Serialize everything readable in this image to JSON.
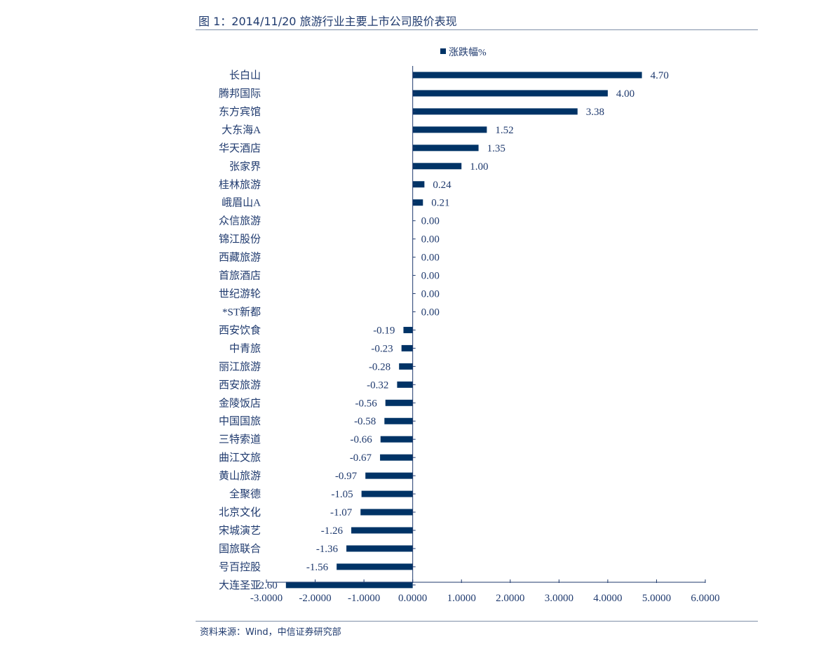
{
  "title": "图 1：2014/11/20 旅游行业主要上市公司股价表现",
  "source": "资料来源：Wind，中信证券研究部",
  "chart_data": {
    "type": "bar",
    "orientation": "horizontal",
    "title": "图 1：2014/11/20 旅游行业主要上市公司股价表现",
    "legend": {
      "position": "top-center"
    },
    "series": [
      {
        "name": "涨跌幅%",
        "color": "#003366",
        "values": [
          4.7,
          4.0,
          3.38,
          1.52,
          1.35,
          1.0,
          0.24,
          0.21,
          0.0,
          0.0,
          0.0,
          0.0,
          0.0,
          0.0,
          -0.19,
          -0.23,
          -0.28,
          -0.32,
          -0.56,
          -0.58,
          -0.66,
          -0.67,
          -0.97,
          -1.05,
          -1.07,
          -1.26,
          -1.36,
          -1.56,
          -2.6
        ],
        "value_labels": [
          "4.70",
          "4.00",
          "3.38",
          "1.52",
          "1.35",
          "1.00",
          "0.24",
          "0.21",
          "0.00",
          "0.00",
          "0.00",
          "0.00",
          "0.00",
          "0.00",
          "-0.19",
          "-0.23",
          "-0.28",
          "-0.32",
          "-0.56",
          "-0.58",
          "-0.66",
          "-0.67",
          "-0.97",
          "-1.05",
          "-1.07",
          "-1.26",
          "-1.36",
          "-1.56",
          "-2.60"
        ]
      }
    ],
    "categories": [
      "长白山",
      "腾邦国际",
      "东方宾馆",
      "大东海A",
      "华天酒店",
      "张家界",
      "桂林旅游",
      "峨眉山A",
      "众信旅游",
      "锦江股份",
      "西藏旅游",
      "首旅酒店",
      "世纪游轮",
      "*ST新都",
      "西安饮食",
      "中青旅",
      "丽江旅游",
      "西安旅游",
      "金陵饭店",
      "中国国旅",
      "三特索道",
      "曲江文旅",
      "黄山旅游",
      "全聚德",
      "北京文化",
      "宋城演艺",
      "国旅联合",
      "号百控股",
      "大连圣亚"
    ],
    "xlim": [
      -3.0,
      6.0
    ],
    "x_ticks": [
      -3,
      -2,
      -1,
      0,
      1,
      2,
      3,
      4,
      5,
      6
    ],
    "x_tick_labels": [
      "-3.0000",
      "-2.0000",
      "-1.0000",
      "0.0000",
      "1.0000",
      "2.0000",
      "3.0000",
      "4.0000",
      "5.0000",
      "6.0000"
    ],
    "grid": false
  }
}
